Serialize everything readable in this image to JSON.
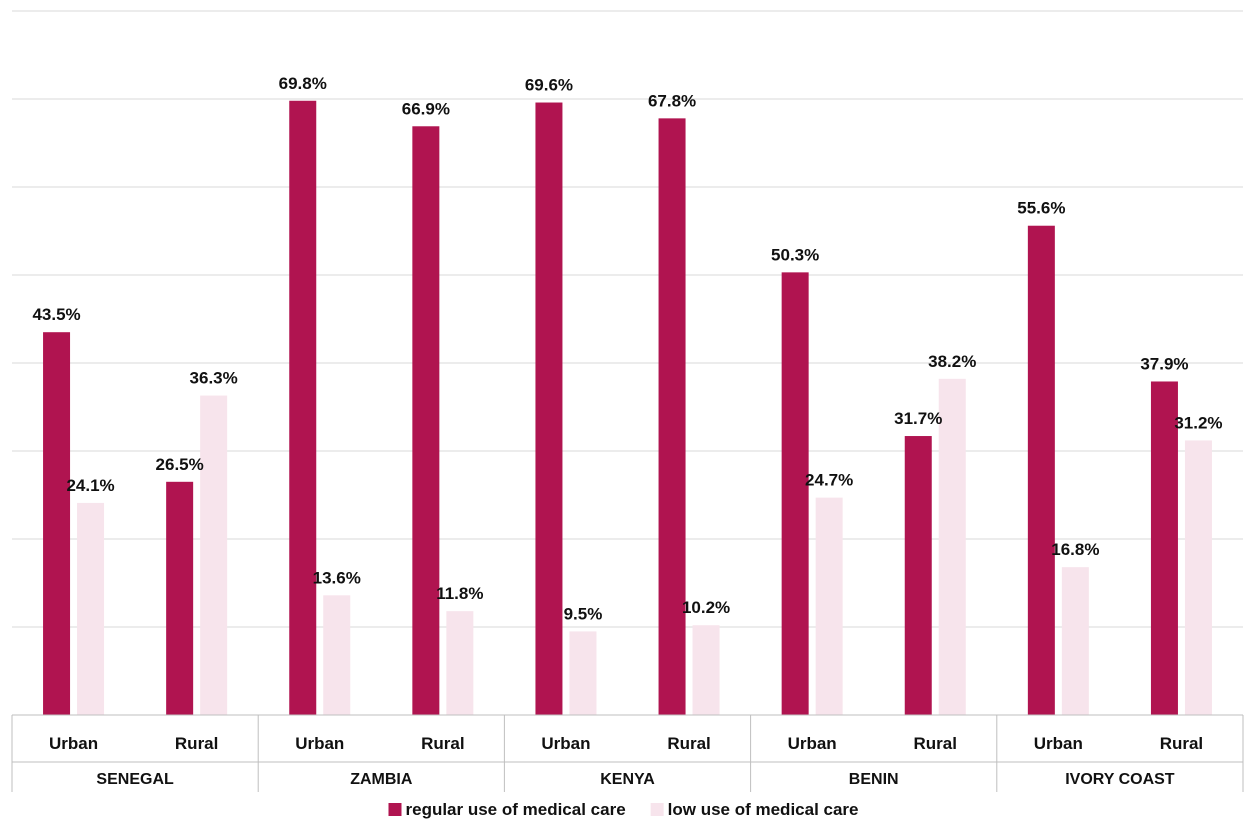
{
  "chart_data": {
    "type": "bar",
    "groups": [
      {
        "name": "SENEGAL",
        "categories": [
          "Urban",
          "Rural"
        ]
      },
      {
        "name": "ZAMBIA",
        "categories": [
          "Urban",
          "Rural"
        ]
      },
      {
        "name": "KENYA",
        "categories": [
          "Urban",
          "Rural"
        ]
      },
      {
        "name": "BENIN",
        "categories": [
          "Urban",
          "Rural"
        ]
      },
      {
        "name": "IVORY COAST",
        "categories": [
          "Urban",
          "Rural"
        ]
      }
    ],
    "series": [
      {
        "name": "regular use of medical care",
        "color": "#b01450",
        "values": [
          43.5,
          26.5,
          69.8,
          66.9,
          69.6,
          67.8,
          50.3,
          31.7,
          55.6,
          37.9
        ],
        "labels": [
          "43.5%",
          "26.5%",
          "69.8%",
          "66.9%",
          "69.6%",
          "67.8%",
          "50.3%",
          "31.7%",
          "55.6%",
          "37.9%"
        ]
      },
      {
        "name": "low use of medical care",
        "color": "#f7e4ec",
        "values": [
          24.1,
          36.3,
          13.6,
          11.8,
          9.5,
          10.2,
          24.7,
          38.2,
          16.8,
          31.2
        ],
        "labels": [
          "24.1%",
          "36.3%",
          "13.6%",
          "11.8%",
          "9.5%",
          "10.2%",
          "24.7%",
          "38.2%",
          "16.8%",
          "31.2%"
        ]
      }
    ],
    "ylim": [
      0,
      80
    ],
    "grid": true,
    "legend_position": "bottom"
  }
}
